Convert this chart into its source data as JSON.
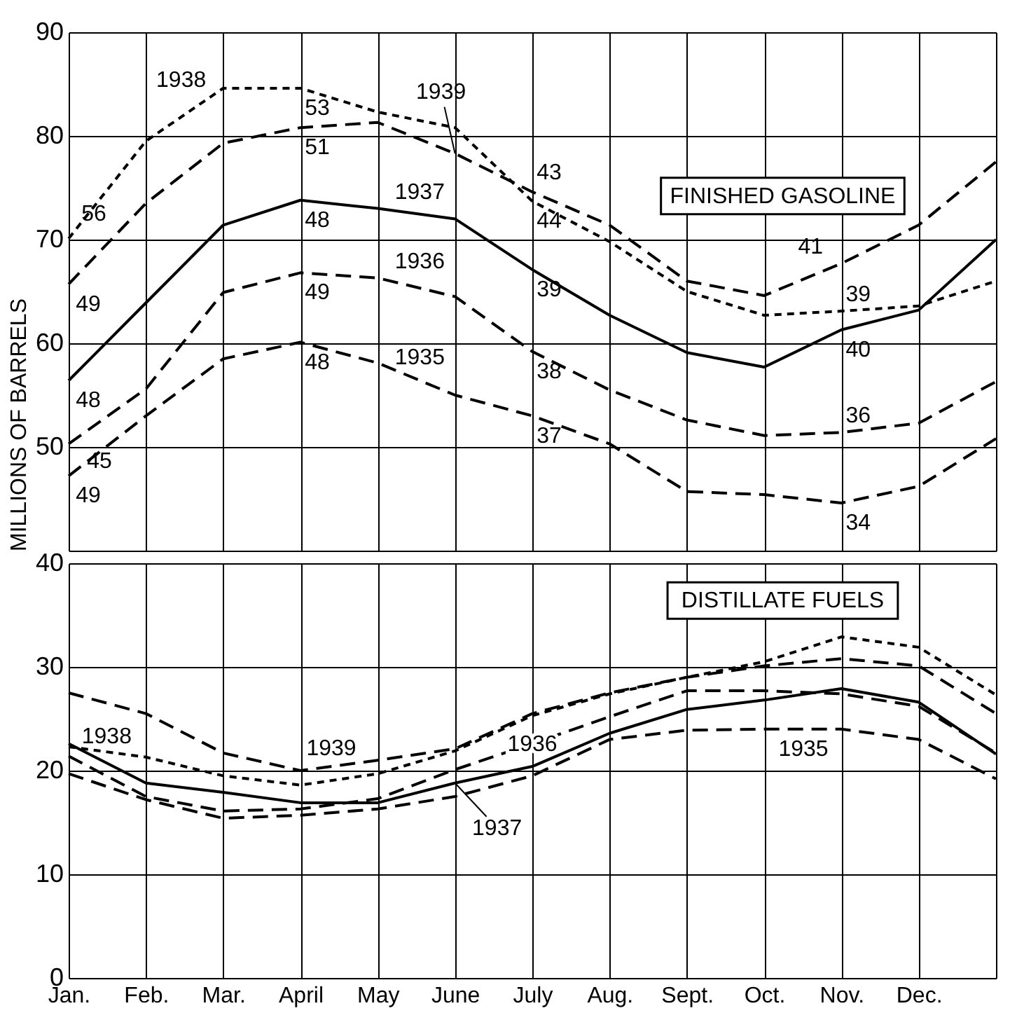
{
  "chart_data": [
    {
      "type": "line",
      "ylabel": "MILLIONS OF BARRELS",
      "categories": [
        "Jan.",
        "Feb.",
        "Mar.",
        "April",
        "May",
        "June",
        "July",
        "Aug.",
        "Sept.",
        "Oct.",
        "Nov.",
        "Dec.",
        null
      ],
      "ylim": [
        40,
        90
      ],
      "yticks": [
        50,
        60,
        70,
        80,
        90
      ],
      "grid": true,
      "tick_labels": "y",
      "series": [
        {
          "name": "1935",
          "color": "#000000",
          "line_style": "dashed",
          "values": [
            47.2,
            53.0,
            58.5,
            60.1,
            58.1,
            55.0,
            53.0,
            50.3,
            45.7,
            45.4,
            44.6,
            46.2,
            50.8
          ]
        },
        {
          "name": "1936",
          "color": "#000000",
          "line_style": "dashed",
          "values": [
            50.3,
            55.6,
            64.9,
            66.8,
            66.3,
            64.5,
            59.2,
            55.5,
            52.6,
            51.1,
            51.4,
            52.3,
            56.3
          ]
        },
        {
          "name": "1937",
          "color": "#000000",
          "line_style": "solid",
          "values": [
            56.4,
            63.9,
            71.4,
            73.8,
            73.0,
            72.0,
            67.1,
            62.7,
            59.1,
            57.7,
            61.3,
            63.2,
            70.0
          ]
        },
        {
          "name": "1938",
          "color": "#000000",
          "line_style": "dotted",
          "values": [
            70.1,
            79.5,
            84.6,
            84.6,
            82.3,
            80.8,
            73.7,
            69.8,
            65.0,
            62.7,
            63.1,
            63.6,
            66.0
          ]
        },
        {
          "name": "1939",
          "color": "#000000",
          "line_style": "dashed",
          "values": [
            65.7,
            73.5,
            79.3,
            80.8,
            81.3,
            78.3,
            74.6,
            71.4,
            66.0,
            64.6,
            67.7,
            71.4,
            77.5
          ]
        }
      ],
      "annotations": [
        {
          "text": "56",
          "x": "Jan.",
          "y": 70.1
        },
        {
          "text": "49",
          "x": "Jan.",
          "y": 65.7
        },
        {
          "text": "48",
          "x": "Jan.",
          "y": 56.4
        },
        {
          "text": "45",
          "x": "Jan.",
          "y": 50.3
        },
        {
          "text": "49",
          "x": "Jan.",
          "y": 47.2
        },
        {
          "text": "53",
          "x": "April",
          "y": 84.6
        },
        {
          "text": "51",
          "x": "April",
          "y": 80.8
        },
        {
          "text": "48",
          "x": "April",
          "y": 73.8
        },
        {
          "text": "49",
          "x": "April",
          "y": 66.8
        },
        {
          "text": "48",
          "x": "April",
          "y": 60.1
        },
        {
          "text": "43",
          "x": "July",
          "y": 74.6
        },
        {
          "text": "44",
          "x": "July",
          "y": 73.7
        },
        {
          "text": "39",
          "x": "July",
          "y": 67.1
        },
        {
          "text": "38",
          "x": "July",
          "y": 59.2
        },
        {
          "text": "37",
          "x": "July",
          "y": 53.0
        },
        {
          "text": "41",
          "x": "Nov.",
          "y": 67.7
        },
        {
          "text": "39",
          "x": "Nov.",
          "y": 63.1
        },
        {
          "text": "40",
          "x": "Nov.",
          "y": 61.3
        },
        {
          "text": "36",
          "x": "Nov.",
          "y": 51.4
        },
        {
          "text": "34",
          "x": "Nov.",
          "y": 44.6
        },
        "FINISHED GASOLINE"
      ]
    },
    {
      "type": "line",
      "categories": [
        "Jan.",
        "Feb.",
        "Mar.",
        "April",
        "May",
        "June",
        "July",
        "Aug.",
        "Sept.",
        "Oct.",
        "Nov.",
        "Dec.",
        null
      ],
      "ylim": [
        0,
        40
      ],
      "yticks": [
        0,
        10,
        20,
        30,
        40
      ],
      "grid": true,
      "series": [
        {
          "name": "1935",
          "color": "#000000",
          "line_style": "dashed",
          "values": [
            19.7,
            17.2,
            15.4,
            15.7,
            16.3,
            17.5,
            19.5,
            23.0,
            23.9,
            24.0,
            24.0,
            23.0,
            19.2
          ]
        },
        {
          "name": "1936",
          "color": "#000000",
          "line_style": "dashed",
          "values": [
            21.4,
            17.5,
            16.1,
            16.3,
            17.3,
            20.1,
            22.6,
            25.2,
            27.7,
            27.7,
            27.4,
            26.2,
            21.7
          ]
        },
        {
          "name": "1937",
          "color": "#000000",
          "line_style": "solid",
          "values": [
            22.6,
            18.8,
            17.9,
            16.9,
            16.9,
            18.8,
            20.4,
            23.6,
            25.9,
            26.8,
            27.9,
            26.6,
            21.6
          ]
        },
        {
          "name": "1938",
          "color": "#000000",
          "line_style": "dotted",
          "values": [
            22.3,
            21.3,
            19.5,
            18.6,
            19.7,
            21.9,
            25.3,
            27.4,
            29.0,
            30.5,
            32.9,
            31.9,
            27.3
          ]
        },
        {
          "name": "1939",
          "color": "#000000",
          "line_style": "dashed",
          "values": [
            27.5,
            25.5,
            21.7,
            20.0,
            21.0,
            22.1,
            25.5,
            27.5,
            29.0,
            30.1,
            30.8,
            30.1,
            25.5
          ]
        }
      ],
      "annotations": [
        "DISTILLATE FUELS"
      ]
    }
  ]
}
